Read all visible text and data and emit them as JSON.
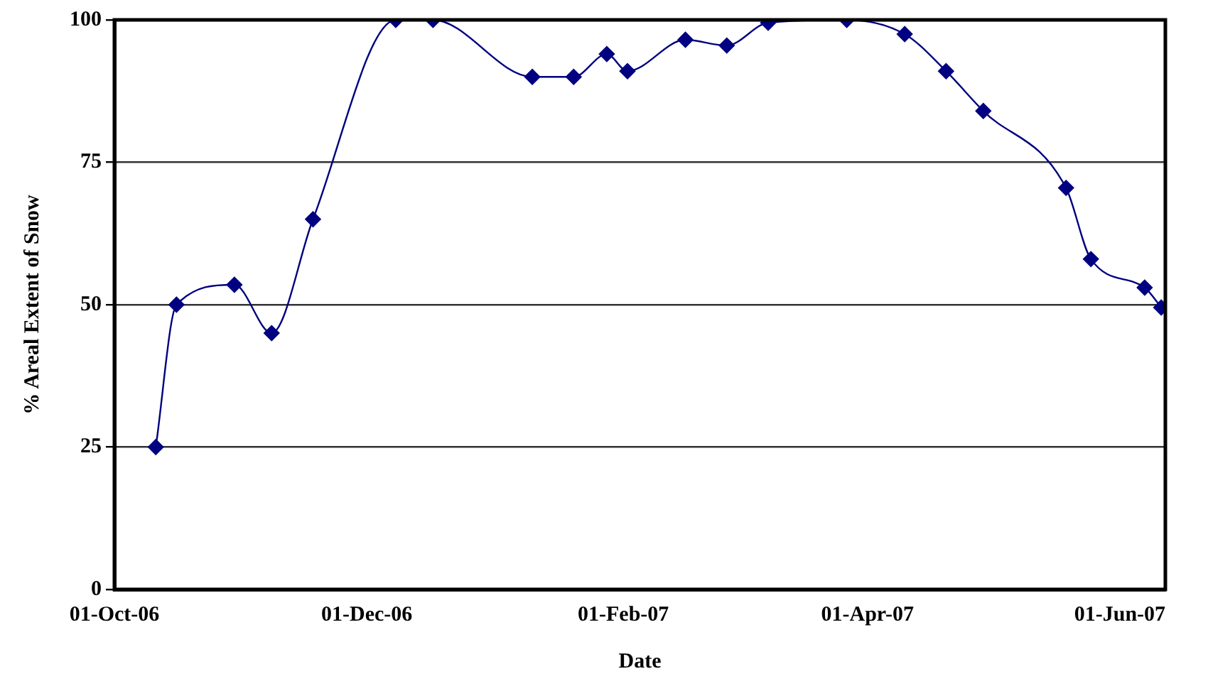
{
  "chart_data": {
    "type": "line",
    "xlabel": "Date",
    "ylabel": "% Areal Extent of Snow",
    "x": [
      "2006-10-11",
      "2006-10-16",
      "2006-10-30",
      "2006-11-08",
      "2006-11-18",
      "2006-12-08",
      "2006-12-17",
      "2007-01-10",
      "2007-01-20",
      "2007-01-28",
      "2007-02-02",
      "2007-02-16",
      "2007-02-26",
      "2007-03-08",
      "2007-03-27",
      "2007-04-10",
      "2007-04-20",
      "2007-04-29",
      "2007-05-19",
      "2007-05-25",
      "2007-06-07",
      "2007-06-11"
    ],
    "series": [
      {
        "color": "#000080",
        "values": [
          25,
          50,
          53.5,
          45,
          65,
          100,
          100,
          90,
          90,
          94,
          91,
          96.5,
          95.5,
          99.5,
          100,
          97.5,
          91,
          84,
          70.5,
          58,
          53,
          49.5
        ]
      }
    ],
    "xlim": [
      "2006-10-01",
      "2007-06-12"
    ],
    "xticks": [
      {
        "value": "2006-10-01",
        "label": "01-Oct-06"
      },
      {
        "value": "2006-12-01",
        "label": "01-Dec-06"
      },
      {
        "value": "2007-02-01",
        "label": "01-Feb-07"
      },
      {
        "value": "2007-04-01",
        "label": "01-Apr-07"
      },
      {
        "value": "2007-06-01",
        "label": "01-Jun-07"
      }
    ],
    "ylim": [
      0,
      100
    ],
    "yticks": [
      0,
      25,
      50,
      75,
      100
    ],
    "grid": "y",
    "legend": false,
    "marker": "diamond",
    "line_style": "solid"
  }
}
